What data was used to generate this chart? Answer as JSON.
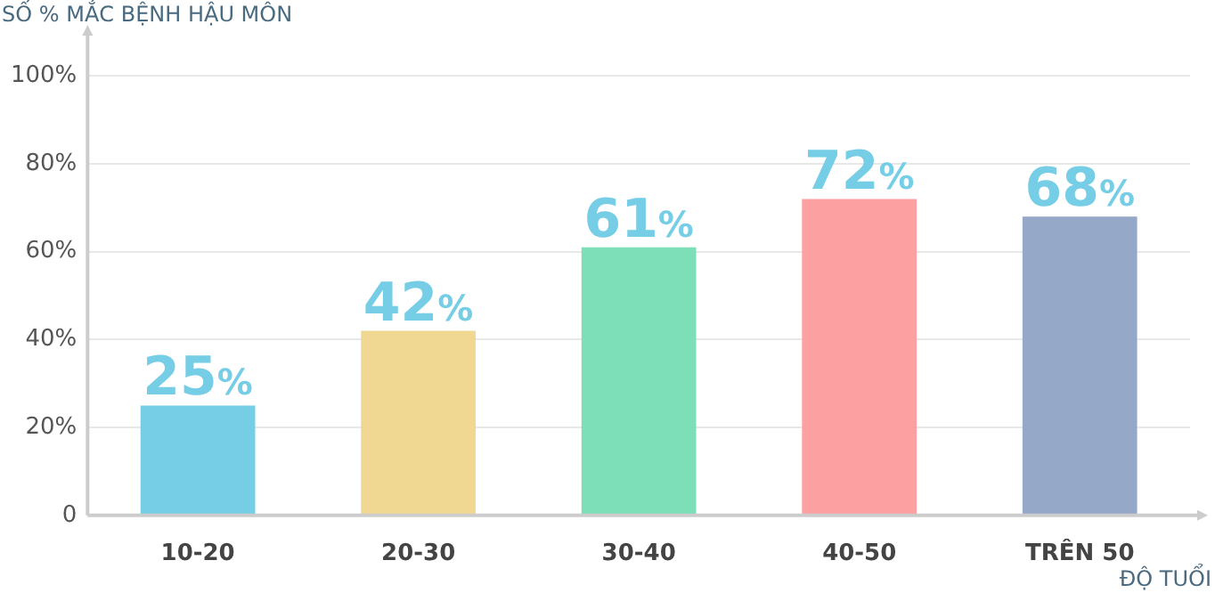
{
  "chart_data": {
    "type": "bar",
    "ylabel": "SỐ % MẮC BỆNH HẬU MÔN",
    "xlabel": "ĐỘ TUỔI",
    "categories": [
      "10-20",
      "20-30",
      "30-40",
      "40-50",
      "TRÊN 50"
    ],
    "values": [
      25,
      42,
      61,
      72,
      68
    ],
    "colors": [
      "#76cde6",
      "#f0d792",
      "#7ddfb7",
      "#fda0a2",
      "#95a8c8"
    ],
    "value_labels": [
      "25%",
      "42%",
      "61%",
      "72%",
      "68%"
    ],
    "ylim": [
      0,
      110
    ],
    "yticks": [
      {
        "value": 0,
        "label": "0"
      },
      {
        "value": 20,
        "label": "20%"
      },
      {
        "value": 40,
        "label": "40%"
      },
      {
        "value": 60,
        "label": "60%"
      },
      {
        "value": 80,
        "label": "80%"
      },
      {
        "value": 100,
        "label": "100%"
      }
    ],
    "grid": "y",
    "legend": false
  }
}
